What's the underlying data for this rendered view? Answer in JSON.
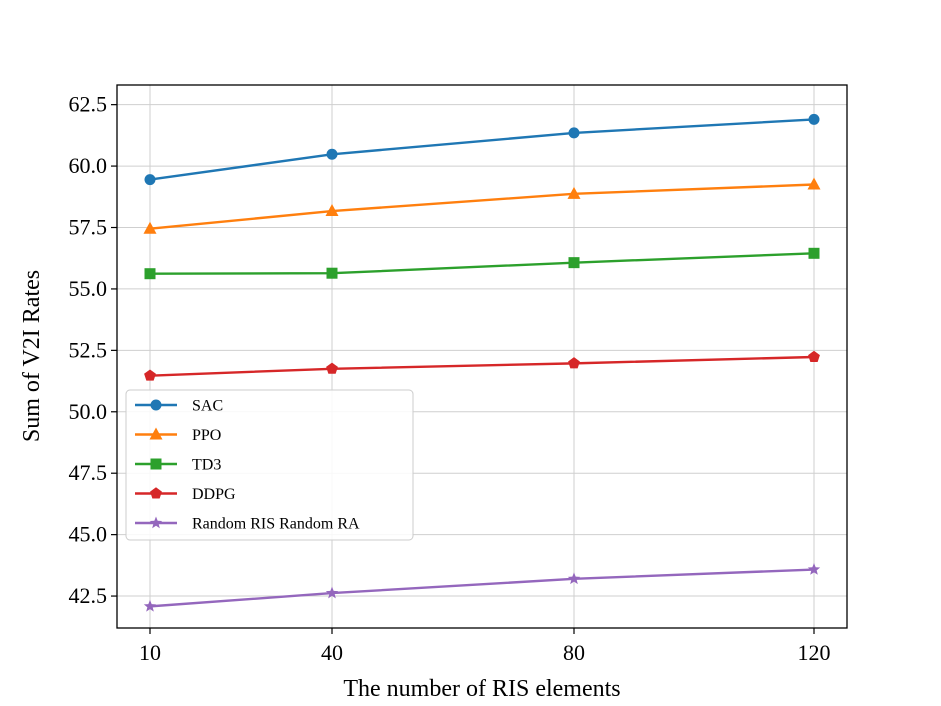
{
  "chart_data": {
    "type": "line",
    "title": "",
    "xlabel": "The number of RIS elements",
    "ylabel": "Sum of V2I Rates",
    "categories": [
      "10",
      "40",
      "80",
      "120"
    ],
    "ylim": [
      41.2,
      63.3
    ],
    "yticks": [
      "42.5",
      "45.0",
      "47.5",
      "50.0",
      "52.5",
      "55.0",
      "57.5",
      "60.0",
      "62.5"
    ],
    "grid": true,
    "legend_position": "lower-left",
    "series": [
      {
        "name": "SAC",
        "values": [
          59.45,
          60.48,
          61.35,
          61.9
        ],
        "color": "#1f77b4",
        "marker": "circle"
      },
      {
        "name": "PPO",
        "values": [
          57.45,
          58.17,
          58.87,
          59.25
        ],
        "color": "#ff7f0e",
        "marker": "triangle"
      },
      {
        "name": "TD3",
        "values": [
          55.62,
          55.64,
          56.07,
          56.45
        ],
        "color": "#2ca02c",
        "marker": "square"
      },
      {
        "name": "DDPG",
        "values": [
          51.47,
          51.75,
          51.97,
          52.23
        ],
        "color": "#d62728",
        "marker": "pentagon"
      },
      {
        "name": "Random RIS Random RA",
        "values": [
          42.08,
          42.62,
          43.2,
          43.58
        ],
        "color": "#9467bd",
        "marker": "star"
      }
    ]
  }
}
